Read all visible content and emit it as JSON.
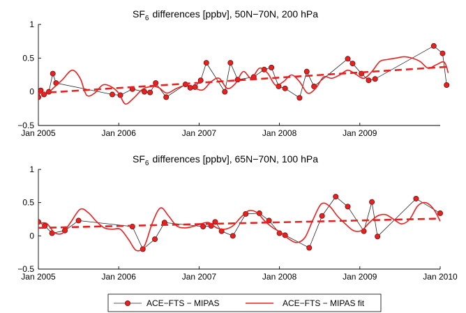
{
  "legend": {
    "items": [
      {
        "label": "ACE−FTS − MIPAS",
        "style": "dots-line",
        "color": "#e8201f"
      },
      {
        "label": "ACE−FTS − MIPAS fit",
        "style": "line",
        "color": "#e8201f"
      }
    ]
  },
  "chart_data": [
    {
      "type": "line",
      "title": "SF₆ differences [ppbv], 50N−70N, 200 hPa",
      "title_main": "SF",
      "title_sub": "6",
      "title_rest": "differences [ppbv], 50N−70N, 200 hPa",
      "xlabel": "",
      "ylabel": "",
      "xlim": [
        2005.0,
        2010.0
      ],
      "ylim": [
        -0.5,
        1.0
      ],
      "xticks": [
        2005,
        2006,
        2007,
        2008,
        2009
      ],
      "xtick_labels": [
        "Jan 2005",
        "Jan 2006",
        "Jan 2007",
        "Jan 2008",
        "Jan 2009"
      ],
      "yticks": [
        -0.5,
        0,
        0.5,
        1
      ],
      "ytick_labels": [
        "−0.5",
        "0",
        "0.5",
        "1"
      ],
      "series": [
        {
          "name": "ACE−FTS − MIPAS",
          "style": "dots-line",
          "x": [
            2005.0,
            2005.03,
            2005.07,
            2005.13,
            2005.18,
            2005.22,
            2005.92,
            2006.02,
            2006.17,
            2006.32,
            2006.39,
            2006.46,
            2006.59,
            2006.83,
            2006.89,
            2006.95,
            2007.02,
            2007.09,
            2007.32,
            2007.39,
            2007.48,
            2007.68,
            2007.81,
            2007.9,
            2007.99,
            2008.07,
            2008.25,
            2008.34,
            2008.43,
            2008.85,
            2008.91,
            2009.02,
            2009.11,
            2009.19,
            2009.92,
            2010.03,
            2010.08
          ],
          "y": [
            -0.08,
            0.02,
            -0.04,
            0.0,
            0.27,
            0.13,
            -0.04,
            -0.05,
            0.04,
            0.0,
            -0.01,
            0.13,
            -0.08,
            0.11,
            0.06,
            0.07,
            0.17,
            0.43,
            0.0,
            0.43,
            0.18,
            0.22,
            0.33,
            0.36,
            0.08,
            0.05,
            -0.09,
            0.3,
            0.08,
            0.49,
            0.42,
            0.27,
            0.17,
            0.19,
            0.68,
            0.57,
            0.1
          ]
        },
        {
          "name": "ACE−FTS − MIPAS fit",
          "style": "line",
          "x": [
            2005.0,
            2005.1,
            2005.2,
            2005.3,
            2005.42,
            2005.52,
            2005.6,
            2005.7,
            2005.8,
            2005.9,
            2006.0,
            2006.08,
            2006.18,
            2006.3,
            2006.42,
            2006.5,
            2006.6,
            2006.72,
            2006.85,
            2006.95,
            2007.05,
            2007.15,
            2007.25,
            2007.35,
            2007.45,
            2007.55,
            2007.65,
            2007.75,
            2007.85,
            2007.95,
            2008.05,
            2008.15,
            2008.25,
            2008.35,
            2008.45,
            2008.55,
            2008.65,
            2008.75,
            2008.85,
            2008.95,
            2009.05,
            2009.15,
            2009.25,
            2009.35,
            2009.45,
            2009.55,
            2009.65,
            2009.75,
            2009.85,
            2009.95,
            2010.05,
            2010.1
          ],
          "y": [
            -0.01,
            -0.03,
            0.07,
            0.18,
            0.32,
            0.2,
            -0.05,
            -0.02,
            0.1,
            0.08,
            -0.02,
            -0.18,
            -0.1,
            0.04,
            0.08,
            0.06,
            -0.02,
            0.05,
            0.1,
            0.05,
            0.03,
            0.15,
            0.2,
            0.05,
            0.12,
            0.3,
            0.2,
            0.35,
            0.28,
            0.1,
            0.15,
            0.25,
            0.15,
            -0.02,
            0.05,
            0.22,
            0.2,
            0.25,
            0.32,
            0.26,
            0.2,
            0.3,
            0.45,
            0.48,
            0.5,
            0.52,
            0.5,
            0.45,
            0.35,
            0.4,
            0.44,
            0.28
          ]
        },
        {
          "name": "trend",
          "style": "dashed",
          "x": [
            2005.0,
            2010.08
          ],
          "y": [
            -0.02,
            0.37
          ]
        }
      ]
    },
    {
      "type": "line",
      "title": "SF₆ differences [ppbv], 65N−70N, 100 hPa",
      "title_main": "SF",
      "title_sub": "6",
      "title_rest": "differences [ppbv], 65N−70N, 100 hPa",
      "xlabel": "",
      "ylabel": "",
      "xlim": [
        2005.0,
        2010.0
      ],
      "ylim": [
        -0.5,
        1.0
      ],
      "xticks": [
        2005,
        2006,
        2007,
        2008,
        2009,
        2010
      ],
      "xtick_labels": [
        "Jan 2005",
        "Jan 2006",
        "Jan 2007",
        "Jan 2008",
        "Jan 2009",
        "Jan 2010"
      ],
      "yticks": [
        -0.5,
        0,
        0.5,
        1
      ],
      "ytick_labels": [
        "−0.5",
        "0",
        "0.5",
        "1"
      ],
      "series": [
        {
          "name": "ACE−FTS − MIPAS",
          "style": "dots-line",
          "x": [
            2005.0,
            2005.08,
            2005.17,
            2005.33,
            2005.5,
            2006.17,
            2006.3,
            2006.45,
            2006.57,
            2007.05,
            2007.15,
            2007.2,
            2007.28,
            2007.42,
            2007.58,
            2007.75,
            2007.87,
            2008.0,
            2008.07,
            2008.37,
            2008.53,
            2008.7,
            2008.85,
            2009.05,
            2009.15,
            2009.22,
            2009.7,
            2010.0
          ],
          "y": [
            0.21,
            0.15,
            0.04,
            0.08,
            0.23,
            0.14,
            -0.2,
            -0.05,
            0.2,
            0.14,
            0.15,
            0.21,
            0.07,
            0.0,
            0.33,
            0.34,
            0.23,
            0.04,
            0.01,
            -0.18,
            0.3,
            0.59,
            0.44,
            0.07,
            0.51,
            -0.01,
            0.56,
            0.34
          ]
        },
        {
          "name": "ACE−FTS − MIPAS fit",
          "style": "line",
          "x": [
            2005.0,
            2005.1,
            2005.2,
            2005.3,
            2005.4,
            2005.52,
            2005.62,
            2005.72,
            2005.82,
            2005.92,
            2006.02,
            2006.12,
            2006.22,
            2006.32,
            2006.42,
            2006.52,
            2006.62,
            2006.72,
            2006.82,
            2006.92,
            2007.02,
            2007.12,
            2007.22,
            2007.32,
            2007.42,
            2007.52,
            2007.62,
            2007.72,
            2007.82,
            2007.92,
            2008.02,
            2008.12,
            2008.22,
            2008.32,
            2008.42,
            2008.52,
            2008.62,
            2008.72,
            2008.82,
            2008.92,
            2009.02,
            2009.12,
            2009.22,
            2009.32,
            2009.42,
            2009.52,
            2009.62,
            2009.72,
            2009.82,
            2009.92,
            2010.0
          ],
          "y": [
            0.18,
            0.19,
            0.05,
            0.04,
            0.2,
            0.4,
            0.35,
            0.22,
            0.12,
            0.1,
            0.1,
            -0.05,
            -0.22,
            -0.15,
            0.2,
            0.42,
            0.3,
            0.15,
            0.12,
            0.14,
            0.18,
            0.2,
            0.12,
            0.1,
            0.15,
            0.28,
            0.38,
            0.35,
            0.22,
            0.12,
            0.05,
            -0.05,
            -0.1,
            -0.02,
            0.25,
            0.48,
            0.45,
            0.3,
            0.18,
            0.08,
            0.08,
            0.2,
            0.3,
            0.32,
            0.25,
            0.18,
            0.25,
            0.45,
            0.5,
            0.4,
            0.22
          ]
        },
        {
          "name": "trend",
          "style": "dashed",
          "x": [
            2005.0,
            2010.0
          ],
          "y": [
            0.12,
            0.26
          ]
        }
      ]
    }
  ]
}
